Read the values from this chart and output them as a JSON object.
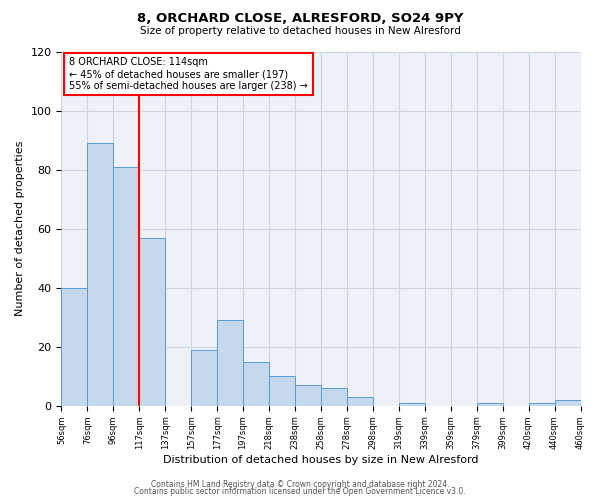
{
  "title": "8, ORCHARD CLOSE, ALRESFORD, SO24 9PY",
  "subtitle": "Size of property relative to detached houses in New Alresford",
  "xlabel": "Distribution of detached houses by size in New Alresford",
  "ylabel": "Number of detached properties",
  "bar_heights": [
    40,
    89,
    81,
    57,
    0,
    19,
    29,
    15,
    10,
    7,
    6,
    3,
    0,
    1,
    0,
    0,
    1,
    0,
    1,
    2
  ],
  "tick_labels": [
    "56sqm",
    "76sqm",
    "96sqm",
    "117sqm",
    "137sqm",
    "157sqm",
    "177sqm",
    "197sqm",
    "218sqm",
    "238sqm",
    "258sqm",
    "278sqm",
    "298sqm",
    "319sqm",
    "339sqm",
    "359sqm",
    "379sqm",
    "399sqm",
    "420sqm",
    "440sqm",
    "460sqm"
  ],
  "bar_color": "#c6d9ec",
  "bar_edge_color": "#5b9bd5",
  "vline_bar_index": 3,
  "vline_color": "red",
  "annotation_text": "8 ORCHARD CLOSE: 114sqm\n← 45% of detached houses are smaller (197)\n55% of semi-detached houses are larger (238) →",
  "ylim": [
    0,
    120
  ],
  "yticks": [
    0,
    20,
    40,
    60,
    80,
    100,
    120
  ],
  "grid_color": "#cdd5e0",
  "background_color": "#eef2f8",
  "footer1": "Contains HM Land Registry data © Crown copyright and database right 2024.",
  "footer2": "Contains public sector information licensed under the Open Government Licence v3.0."
}
